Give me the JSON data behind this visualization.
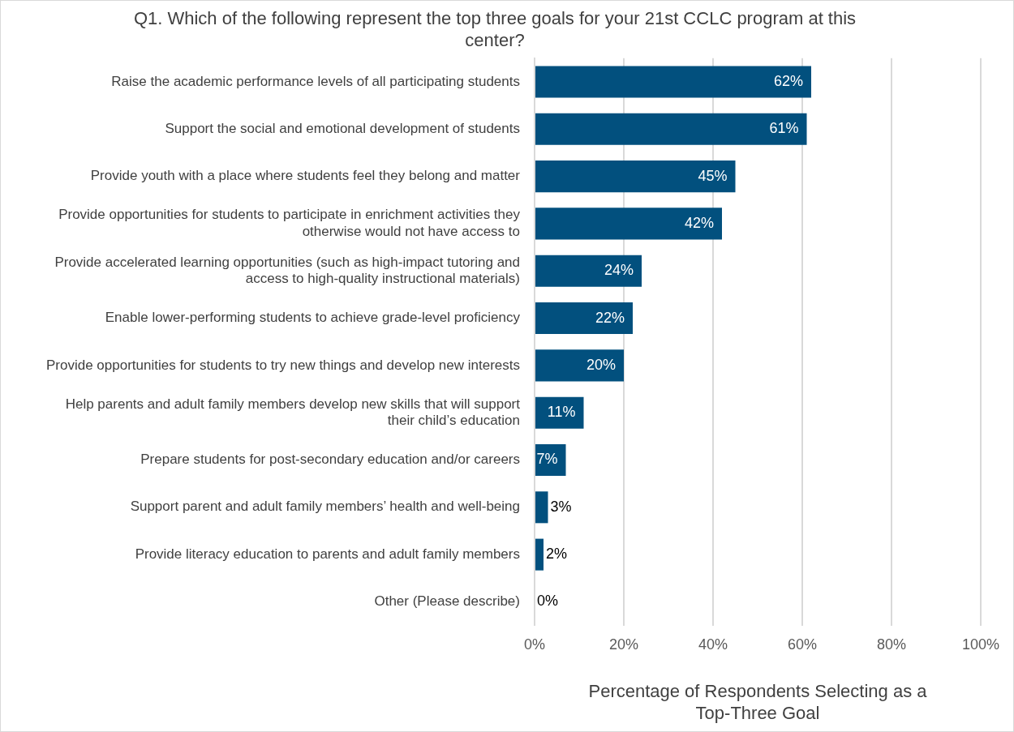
{
  "chart_data": {
    "type": "bar",
    "orientation": "horizontal",
    "title": "Q1. Which of the following represent the top three goals for your 21st CCLC program at this center?",
    "xlabel": "Percentage of Respondents Selecting as a Top-Three Goal",
    "categories": [
      "Raise the academic performance levels of all participating students",
      "Support the social and emotional development of students",
      "Provide youth with a place where students feel they belong and matter",
      "Provide opportunities for students to participate in enrichment activities they otherwise would not have access to",
      "Provide accelerated learning opportunities (such as high-impact tutoring and access to high-quality instructional materials)",
      "Enable lower-performing students to achieve grade-level proficiency",
      "Provide opportunities for students to try new things and develop new interests",
      "Help parents and adult family members develop new skills that will support their child’s education",
      "Prepare students for post-secondary education and/or careers",
      "Support parent and adult family members’ health and well-being",
      "Provide literacy education to parents and adult family members",
      "Other (Please describe)"
    ],
    "values": [
      62,
      61,
      45,
      42,
      24,
      22,
      20,
      11,
      7,
      3,
      2,
      0
    ],
    "value_labels": [
      "62%",
      "61%",
      "45%",
      "42%",
      "24%",
      "22%",
      "20%",
      "11%",
      "7%",
      "3%",
      "2%",
      "0%"
    ],
    "color": "#02507e",
    "xlim": [
      0,
      100
    ],
    "xticks": [
      {
        "value": 0,
        "label": "0%"
      },
      {
        "value": 20,
        "label": "20%"
      },
      {
        "value": 40,
        "label": "40%"
      },
      {
        "value": 60,
        "label": "60%"
      },
      {
        "value": 80,
        "label": "80%"
      },
      {
        "value": 100,
        "label": "100%"
      }
    ],
    "grid": "x"
  }
}
